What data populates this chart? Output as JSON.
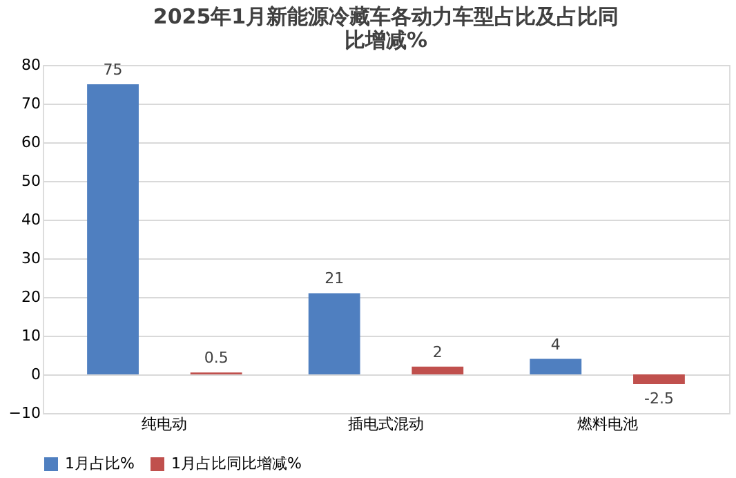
{
  "chart_data": {
    "type": "bar",
    "title": "2025年1月新能源冷藏车各动力车型占比及占比同比增减%",
    "categories": [
      "纯电动",
      "插电式混动",
      "燃料电池"
    ],
    "series": [
      {
        "name": "1月占比%",
        "color": "#4f7fc0",
        "values": [
          75,
          21,
          4
        ]
      },
      {
        "name": "1月占比同比增减%",
        "color": "#c0504d",
        "values": [
          0.5,
          2,
          -2.5
        ]
      }
    ],
    "ylim": [
      -10,
      80
    ],
    "yticks": [
      -10,
      0,
      10,
      20,
      30,
      40,
      50,
      60,
      70,
      80
    ],
    "grid": "y",
    "legend": "bottom",
    "data_labels": true
  }
}
